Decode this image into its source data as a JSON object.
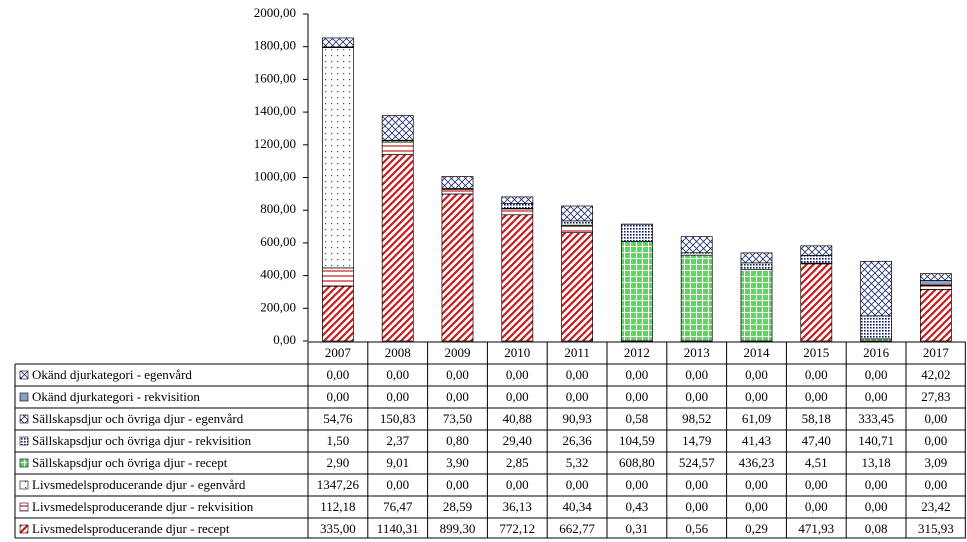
{
  "chart_data": {
    "type": "stacked-bar",
    "categories": [
      "2007",
      "2008",
      "2009",
      "2010",
      "2011",
      "2012",
      "2013",
      "2014",
      "2015",
      "2016",
      "2017"
    ],
    "ylim": [
      0,
      2000
    ],
    "yticks": [
      {
        "value": 0,
        "label": "0,00"
      },
      {
        "value": 200,
        "label": "200,00"
      },
      {
        "value": 400,
        "label": "400,00"
      },
      {
        "value": 600,
        "label": "600,00"
      },
      {
        "value": 800,
        "label": "800,00"
      },
      {
        "value": 1000,
        "label": "1000,00"
      },
      {
        "value": 1200,
        "label": "1200,00"
      },
      {
        "value": 1400,
        "label": "1400,00"
      },
      {
        "value": 1600,
        "label": "1600,00"
      },
      {
        "value": 1800,
        "label": "1800,00"
      },
      {
        "value": 2000,
        "label": "2000,00"
      }
    ],
    "series": [
      {
        "name": "Okänd djurkategori - egenvård",
        "color": "#1f2a6e",
        "pattern": "crosshatch",
        "values": [
          0,
          0,
          0,
          0,
          0,
          0,
          0,
          0,
          0,
          0,
          42.02
        ],
        "value_labels": [
          "0,00",
          "0,00",
          "0,00",
          "0,00",
          "0,00",
          "0,00",
          "0,00",
          "0,00",
          "0,00",
          "0,00",
          "42,02"
        ]
      },
      {
        "name": "Okänd djurkategori - rekvisition",
        "color": "#8e9fc4",
        "pattern": "solid",
        "values": [
          0,
          0,
          0,
          0,
          0,
          0,
          0,
          0,
          0,
          0,
          27.83
        ],
        "value_labels": [
          "0,00",
          "0,00",
          "0,00",
          "0,00",
          "0,00",
          "0,00",
          "0,00",
          "0,00",
          "0,00",
          "0,00",
          "27,83"
        ]
      },
      {
        "name": "Sällskapsdjur och övriga djur - egenvård",
        "color": "#1f2a6e",
        "pattern": "crosshatch",
        "values": [
          54.76,
          150.83,
          73.5,
          40.88,
          90.93,
          0.58,
          98.52,
          61.09,
          58.18,
          333.45,
          0
        ],
        "value_labels": [
          "54,76",
          "150,83",
          "73,50",
          "40,88",
          "90,93",
          "0,58",
          "98,52",
          "61,09",
          "58,18",
          "333,45",
          "0,00"
        ]
      },
      {
        "name": "Sällskapsdjur och övriga djur - rekvisition",
        "color": "#0a1a6e",
        "pattern": "dots",
        "values": [
          1.5,
          2.37,
          0.8,
          29.4,
          26.36,
          104.59,
          14.79,
          41.43,
          47.4,
          140.71,
          0
        ],
        "value_labels": [
          "1,50",
          "2,37",
          "0,80",
          "29,40",
          "26,36",
          "104,59",
          "14,79",
          "41,43",
          "47,40",
          "140,71",
          "0,00"
        ]
      },
      {
        "name": "Sällskapsdjur och övriga djur - recept",
        "color": "#5ed65e",
        "pattern": "grid",
        "values": [
          2.9,
          9.01,
          3.9,
          2.85,
          5.32,
          608.8,
          524.57,
          436.23,
          4.51,
          13.18,
          3.09
        ],
        "value_labels": [
          "2,90",
          "9,01",
          "3,90",
          "2,85",
          "5,32",
          "608,80",
          "524,57",
          "436,23",
          "4,51",
          "13,18",
          "3,09"
        ]
      },
      {
        "name": "Livsmedelsproducerande djur - egenvård",
        "color": "#cc1a1a",
        "pattern": "sparse-dots",
        "values": [
          1347.26,
          0,
          0,
          0,
          0,
          0,
          0,
          0,
          0,
          0,
          0
        ],
        "value_labels": [
          "1347,26",
          "0,00",
          "0,00",
          "0,00",
          "0,00",
          "0,00",
          "0,00",
          "0,00",
          "0,00",
          "0,00",
          "0,00"
        ]
      },
      {
        "name": "Livsmedelsproducerande djur - rekvisition",
        "color": "#cc1a1a",
        "pattern": "hlines",
        "values": [
          112.18,
          76.47,
          28.59,
          36.13,
          40.34,
          0.43,
          0,
          0,
          0,
          0,
          23.42
        ],
        "value_labels": [
          "112,18",
          "76,47",
          "28,59",
          "36,13",
          "40,34",
          "0,43",
          "0,00",
          "0,00",
          "0,00",
          "0,00",
          "23,42"
        ]
      },
      {
        "name": "Livsmedelsproducerande djur - recept",
        "color": "#cc1a1a",
        "pattern": "diagonal",
        "values": [
          335,
          1140.31,
          899.3,
          772.12,
          662.77,
          0.31,
          0.56,
          0.29,
          471.93,
          0.08,
          315.93
        ],
        "value_labels": [
          "335,00",
          "1140,31",
          "899,30",
          "772,12",
          "662,77",
          "0,31",
          "0,56",
          "0,29",
          "471,93",
          "0,08",
          "315,93"
        ]
      }
    ]
  }
}
